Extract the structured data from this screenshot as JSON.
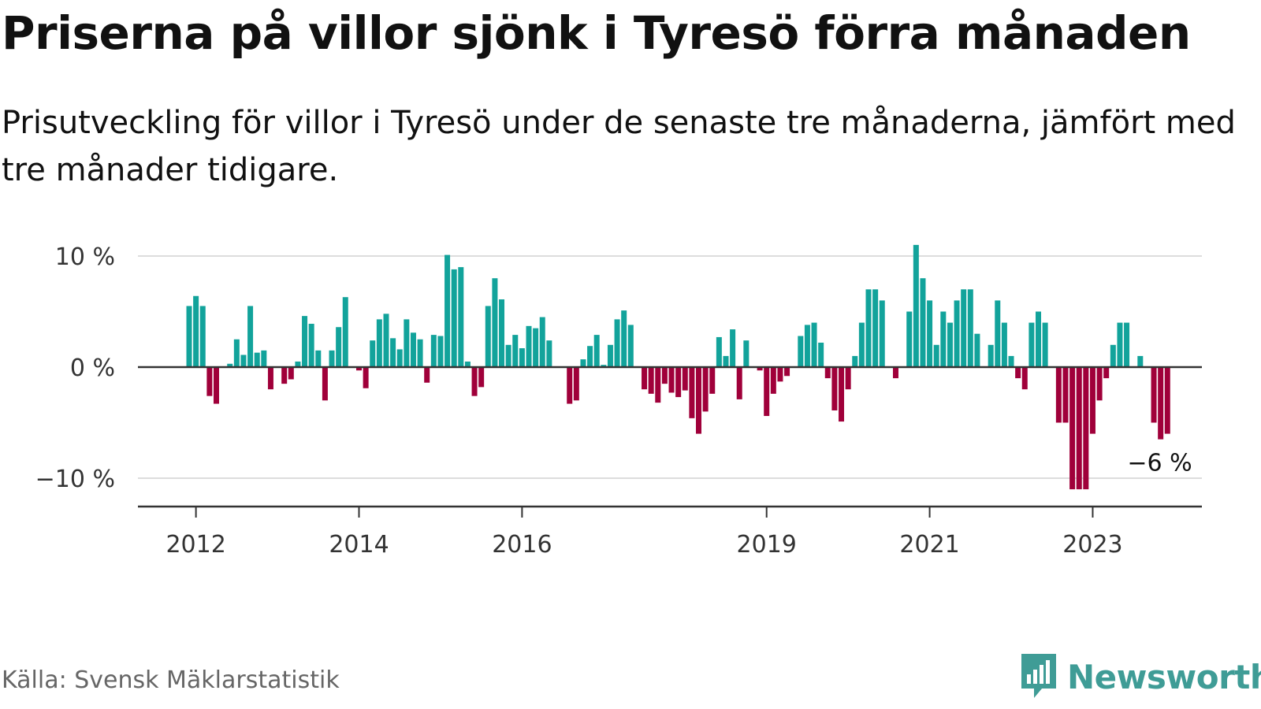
{
  "title": "Priserna på villor sjönk i Tyresö förra månaden",
  "subtitle": "Prisutveckling för villor i Tyresö under de senaste tre månaderna, jämfört med tre månader tidigare.",
  "source": "Källa: Svensk Mäklarstatistik",
  "brand": "Newsworthy",
  "colors": {
    "positive": "#12a39b",
    "negative": "#a0003a",
    "brand": "#3f9c96",
    "grid": "#dddddd",
    "axis": "#333333"
  },
  "chart_data": {
    "type": "bar",
    "title": "Priserna på villor sjönk i Tyresö förra månaden",
    "xlabel": "",
    "ylabel": "",
    "ylim": [
      -12.6,
      12
    ],
    "y_ticks": [
      10,
      0,
      -10
    ],
    "y_tick_labels": [
      "10 %",
      "0 %",
      "−10 %"
    ],
    "x_tick_labels": [
      "2012",
      "2014",
      "2016",
      "2019",
      "2021",
      "2023"
    ],
    "x_tick_months": [
      1,
      25,
      49,
      85,
      109,
      133
    ],
    "start": "2011-12",
    "annotation": "−6 %",
    "annotation_index": 143,
    "values": [
      5.5,
      6.4,
      5.5,
      -2.6,
      -3.3,
      0,
      0.3,
      2.5,
      1.1,
      5.5,
      1.3,
      1.5,
      -2.0,
      0,
      -1.5,
      -1.1,
      0.5,
      4.6,
      3.9,
      1.5,
      -3.0,
      1.5,
      3.6,
      6.3,
      0,
      -0.3,
      -1.9,
      2.4,
      4.3,
      4.8,
      2.6,
      1.6,
      4.3,
      3.1,
      2.5,
      -1.4,
      2.9,
      2.8,
      10.1,
      8.8,
      9.0,
      0.5,
      -2.6,
      -1.8,
      5.5,
      8.0,
      6.1,
      2.0,
      2.9,
      1.7,
      3.7,
      3.5,
      4.5,
      2.4,
      0,
      0,
      -3.3,
      -3.0,
      0.7,
      1.9,
      2.9,
      0.2,
      2.0,
      4.3,
      5.1,
      3.8,
      0,
      -2.0,
      -2.4,
      -3.2,
      -1.5,
      -2.3,
      -2.7,
      -2.1,
      -4.6,
      -6.0,
      -4.0,
      -2.4,
      2.7,
      1.0,
      3.4,
      -2.9,
      2.4,
      0,
      -0.3,
      -4.4,
      -2.4,
      -1.3,
      -0.8,
      0,
      2.8,
      3.8,
      4.0,
      2.2,
      -1.0,
      -3.9,
      -4.9,
      -2.0,
      1.0,
      4.0,
      7.0,
      7.0,
      6.0,
      0,
      -1.0,
      0,
      5.0,
      11.0,
      8.0,
      6.0,
      2.0,
      5.0,
      4.0,
      6.0,
      7.0,
      7.0,
      3.0,
      0,
      2.0,
      6.0,
      4.0,
      1.0,
      -1.0,
      -2.0,
      4.0,
      5.0,
      4.0,
      0,
      -5.0,
      -5.0,
      -11.0,
      -11.0,
      -11.0,
      -6.0,
      -3.0,
      -1.0,
      2.0,
      4.0,
      4.0,
      0,
      1.0,
      0,
      -5.0,
      -6.5,
      -6.0
    ]
  }
}
